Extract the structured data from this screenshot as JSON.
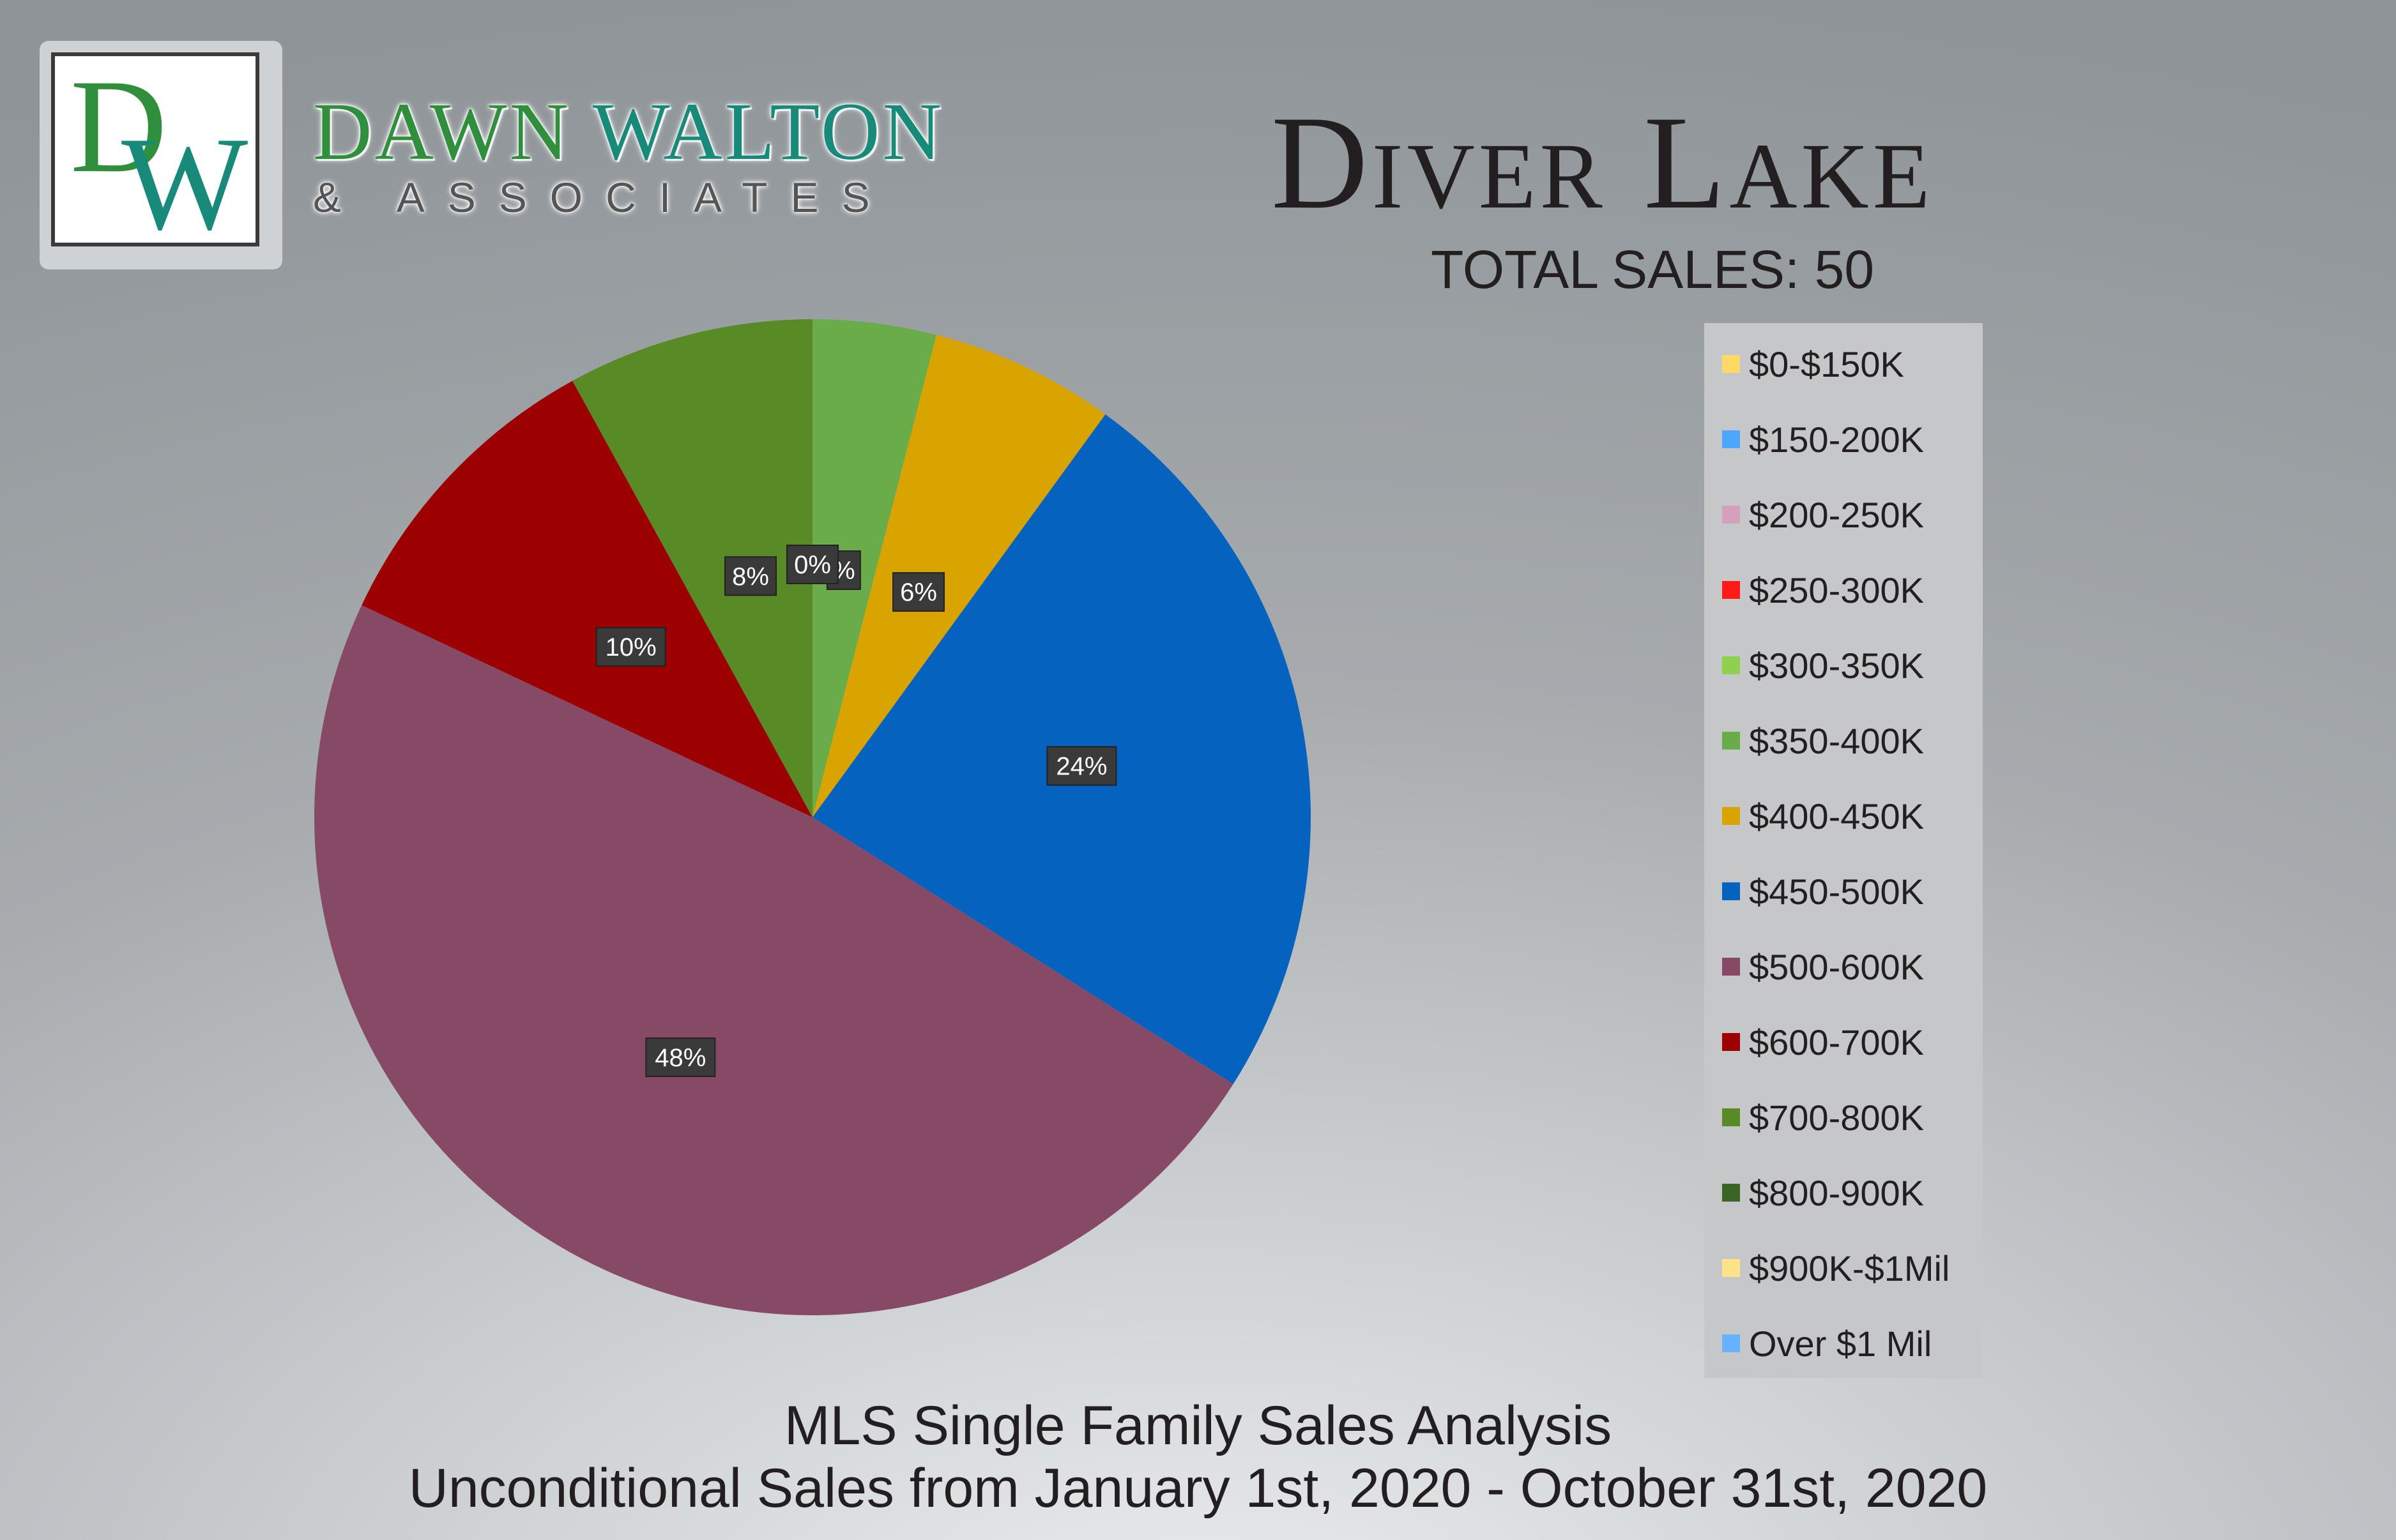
{
  "logo": {
    "monogram": "DW",
    "name_part1": "DAWN ",
    "name_part2": "WALTON",
    "sub": "& ASSOCIATES"
  },
  "header": {
    "title": "Diver Lake",
    "total_sales": "TOTAL SALES: 50"
  },
  "footer": {
    "line1": "MLS Single Family Sales Analysis",
    "line2": "Unconditional Sales from January 1st, 2020 - October 31st, 2020"
  },
  "chart_data": {
    "type": "pie",
    "categories": [
      "$0-$150K",
      "$150-200K",
      "$200-250K",
      "$250-300K",
      "$300-350K",
      "$350-400K",
      "$400-450K",
      "$450-500K",
      "$500-600K",
      "$600-700K",
      "$700-800K",
      "$800-900K",
      "$900K-$1Mil",
      "Over $1 Mil"
    ],
    "values": [
      0,
      0,
      0,
      0,
      0,
      4,
      6,
      24,
      48,
      10,
      8,
      0,
      0,
      0
    ],
    "data_labels": [
      "",
      "",
      "",
      "",
      "",
      "%",
      "6%",
      "24%",
      "48%",
      "10%",
      "8%",
      "0%",
      "",
      ""
    ],
    "colors": [
      "#ffd966",
      "#4da6ff",
      "#d59fbe",
      "#ff1a1a",
      "#8fd14f",
      "#6aac4a",
      "#d9a300",
      "#0562bf",
      "#874a66",
      "#9c0000",
      "#588a26",
      "#3a6524",
      "#ffe38a",
      "#66b2ff"
    ],
    "legend_position": "right"
  }
}
